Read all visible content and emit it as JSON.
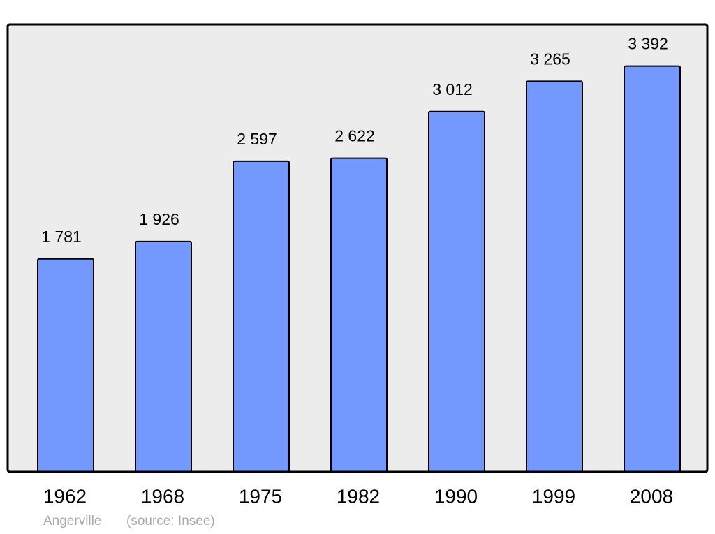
{
  "chart_data": {
    "type": "bar",
    "categories": [
      "1962",
      "1968",
      "1975",
      "1982",
      "1990",
      "1999",
      "2008"
    ],
    "values": [
      1781,
      1926,
      2597,
      2622,
      3012,
      3265,
      3392
    ],
    "value_labels": [
      "1 781",
      "1 926",
      "2 597",
      "2 622",
      "3 012",
      "3 265",
      "3 392"
    ],
    "color": "#7399ff",
    "ylim": [
      0,
      3740
    ],
    "place": "Angerville",
    "source": "(source: Insee)"
  }
}
